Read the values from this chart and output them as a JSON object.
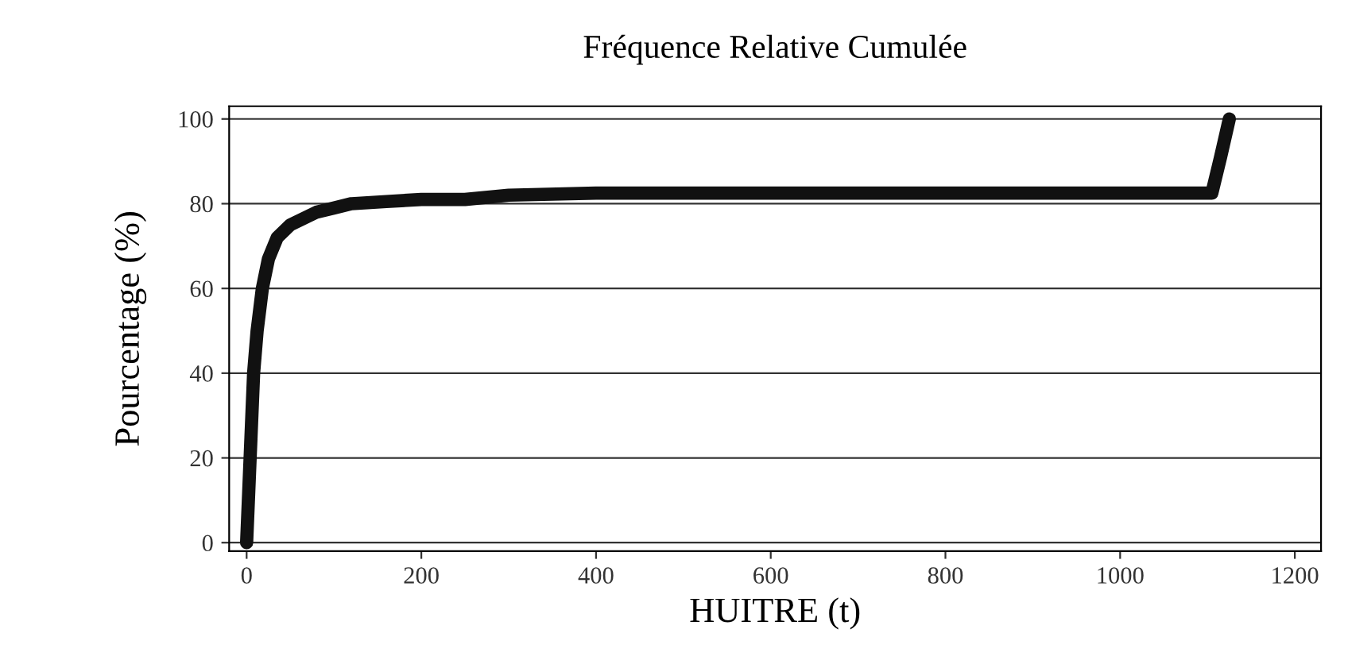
{
  "chart_data": {
    "type": "line",
    "title": "Fréquence Relative Cumulée",
    "xlabel": "HUITRE (t)",
    "ylabel": "Pourcentage (%)",
    "x": [
      0,
      2,
      5,
      8,
      12,
      18,
      25,
      35,
      50,
      65,
      80,
      100,
      120,
      160,
      200,
      250,
      300,
      400,
      500,
      600,
      700,
      800,
      900,
      1000,
      1105,
      1115,
      1125
    ],
    "series": [
      {
        "color": "#111111",
        "values": [
          0,
          10,
          25,
          40,
          50,
          60,
          67,
          72,
          75,
          76.5,
          78,
          79,
          80,
          80.5,
          81,
          81,
          82,
          82.5,
          82.5,
          82.5,
          82.5,
          82.5,
          82.5,
          82.5,
          82.5,
          91,
          100
        ]
      }
    ],
    "xlim": [
      -20,
      1230
    ],
    "ylim": [
      -2,
      103
    ],
    "xticks": [
      0,
      200,
      400,
      600,
      800,
      1000,
      1200
    ],
    "yticks": [
      0,
      20,
      40,
      60,
      80,
      100
    ],
    "grid": "y",
    "legend": false,
    "line_style": "solid"
  }
}
